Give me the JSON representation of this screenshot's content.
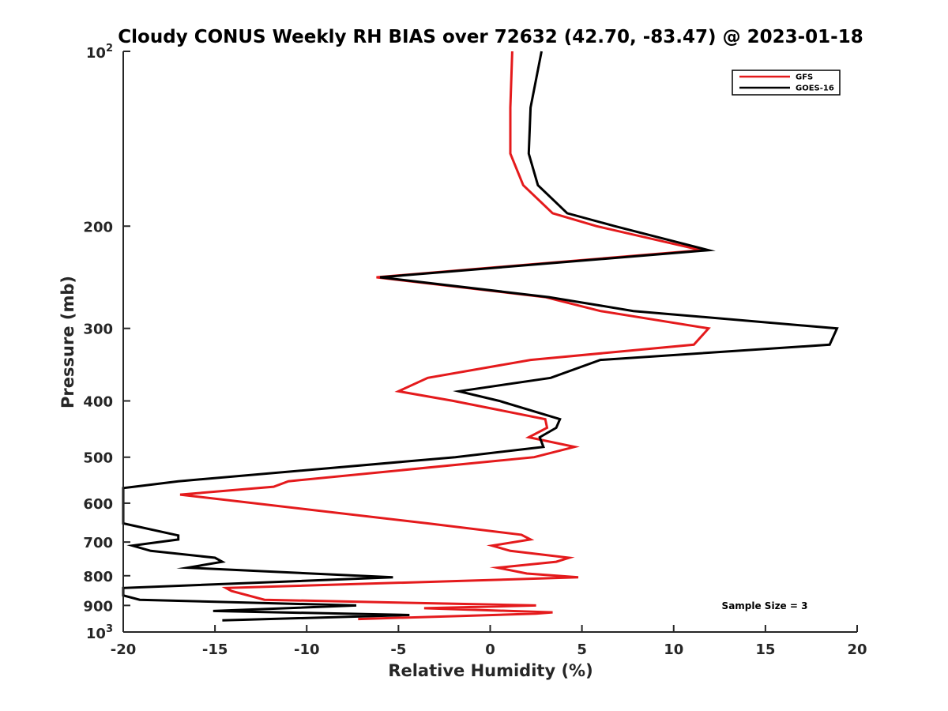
{
  "chart_data": {
    "type": "line",
    "title": "Cloudy CONUS Weekly RH BIAS over 72632 (42.70, -83.47) @ 2023-01-18",
    "xlabel": "Relative Humidity (%)",
    "ylabel": "Pressure (mb)",
    "xlim": [
      -20,
      20
    ],
    "ylim": [
      100,
      1000
    ],
    "y_scale": "log",
    "y_reversed": true,
    "grid": false,
    "legend_position": "top-right",
    "x_ticks": [
      -20,
      -15,
      -10,
      -5,
      0,
      5,
      10,
      15,
      20
    ],
    "x_tick_labels": [
      "-20",
      "-15",
      "-10",
      "-5",
      "0",
      "5",
      "10",
      "15",
      "20"
    ],
    "y_ticks": [
      {
        "value": 100,
        "base": "10",
        "exp": "2"
      },
      {
        "value": 200,
        "label": "200"
      },
      {
        "value": 300,
        "label": "300"
      },
      {
        "value": 400,
        "label": "400"
      },
      {
        "value": 500,
        "label": "500"
      },
      {
        "value": 600,
        "label": "600"
      },
      {
        "value": 700,
        "label": "700"
      },
      {
        "value": 800,
        "label": "800"
      },
      {
        "value": 900,
        "label": "900"
      },
      {
        "value": 1000,
        "base": "10",
        "exp": "3"
      }
    ],
    "annotation": "Sample Size = 3",
    "series": [
      {
        "name": "GFS",
        "color": "#e41a1c",
        "points": [
          [
            1.2,
            100
          ],
          [
            1.1,
            125
          ],
          [
            1.1,
            150
          ],
          [
            1.8,
            170
          ],
          [
            3.4,
            190
          ],
          [
            5.8,
            200
          ],
          [
            11.5,
            220
          ],
          [
            -6.2,
            245
          ],
          [
            3.0,
            265
          ],
          [
            6.0,
            280
          ],
          [
            11.9,
            300
          ],
          [
            11.1,
            320
          ],
          [
            2.2,
            340
          ],
          [
            -3.4,
            365
          ],
          [
            -5.0,
            385
          ],
          [
            -2.0,
            400
          ],
          [
            3.0,
            430
          ],
          [
            3.1,
            445
          ],
          [
            2.1,
            462
          ],
          [
            4.6,
            480
          ],
          [
            2.4,
            500
          ],
          [
            -11.0,
            550
          ],
          [
            -11.8,
            562
          ],
          [
            -16.9,
            580
          ],
          [
            -3.4,
            650
          ],
          [
            1.7,
            680
          ],
          [
            2.2,
            693
          ],
          [
            0.1,
            710
          ],
          [
            1.1,
            725
          ],
          [
            4.3,
            745
          ],
          [
            3.6,
            757
          ],
          [
            0.4,
            775
          ],
          [
            2.0,
            793
          ],
          [
            4.8,
            805
          ],
          [
            -14.4,
            840
          ],
          [
            -14.1,
            850
          ],
          [
            -12.3,
            880
          ],
          [
            2.5,
            900
          ],
          [
            -3.6,
            910
          ],
          [
            3.4,
            925
          ],
          [
            2.5,
            930
          ],
          [
            -7.2,
            950
          ]
        ]
      },
      {
        "name": "GOES-16",
        "color": "#000000",
        "points": [
          [
            2.8,
            100
          ],
          [
            2.2,
            125
          ],
          [
            2.1,
            150
          ],
          [
            2.6,
            170
          ],
          [
            4.2,
            190
          ],
          [
            6.8,
            200
          ],
          [
            11.9,
            220
          ],
          [
            -6.0,
            245
          ],
          [
            3.2,
            265
          ],
          [
            7.8,
            280
          ],
          [
            18.9,
            300
          ],
          [
            18.5,
            320
          ],
          [
            6.0,
            340
          ],
          [
            3.3,
            365
          ],
          [
            -1.7,
            385
          ],
          [
            0.5,
            400
          ],
          [
            3.8,
            430
          ],
          [
            3.6,
            445
          ],
          [
            2.7,
            462
          ],
          [
            2.9,
            480
          ],
          [
            -1.9,
            500
          ],
          [
            -17.0,
            550
          ],
          [
            -19.4,
            562
          ],
          [
            -20.0,
            565
          ],
          [
            -20.0,
            650
          ],
          [
            -17.0,
            682
          ],
          [
            -17.0,
            693
          ],
          [
            -19.5,
            710
          ],
          [
            -18.5,
            725
          ],
          [
            -15.0,
            745
          ],
          [
            -14.6,
            757
          ],
          [
            -16.5,
            775
          ],
          [
            -5.3,
            805
          ],
          [
            -20.0,
            840
          ],
          [
            -20.0,
            865
          ],
          [
            -19.1,
            880
          ],
          [
            -7.3,
            900
          ],
          [
            -15.1,
            920
          ],
          [
            -4.4,
            935
          ],
          [
            -14.6,
            955
          ]
        ]
      }
    ]
  }
}
